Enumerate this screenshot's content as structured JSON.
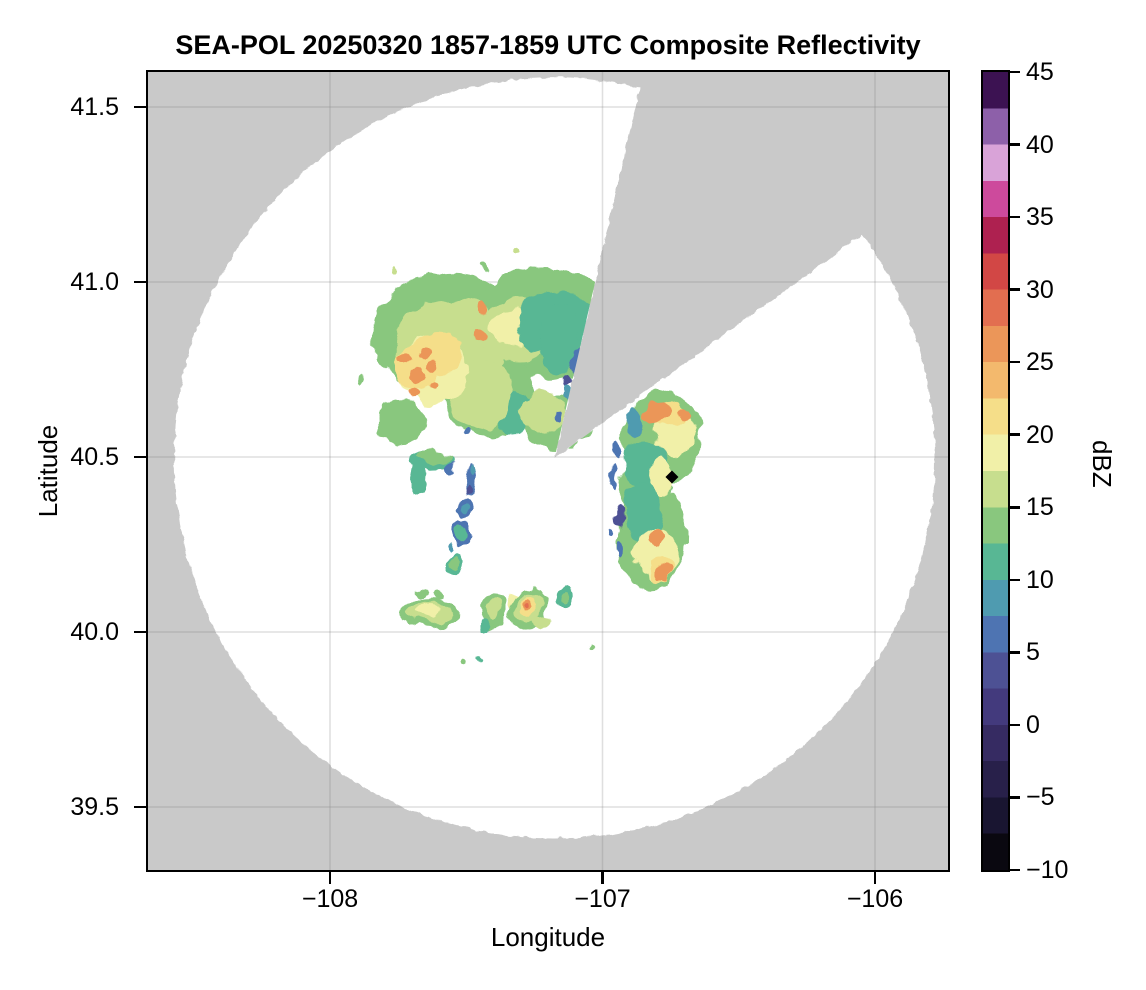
{
  "figure": {
    "title": "SEA-POL 20250320 1857-1859 UTC Composite Reflectivity",
    "x_axis": {
      "label": "Longitude",
      "tick_labels": [
        "−108",
        "−107",
        "−106"
      ],
      "tick_values": [
        -108,
        -107,
        -106
      ]
    },
    "y_axis": {
      "label": "Latitude",
      "tick_labels": [
        "41.5",
        "41.0",
        "40.5",
        "40.0",
        "39.5"
      ],
      "tick_values": [
        41.5,
        41.0,
        40.5,
        40.0,
        39.5
      ]
    },
    "colorbar": {
      "label": "dBZ",
      "tick_labels": [
        "45",
        "40",
        "35",
        "30",
        "25",
        "20",
        "15",
        "10",
        "5",
        "0",
        "−5",
        "−10"
      ],
      "tick_values": [
        45,
        40,
        35,
        30,
        25,
        20,
        15,
        10,
        5,
        0,
        -5,
        -10
      ],
      "vmin": -10,
      "vmax": 45,
      "segment_step": 2.5,
      "colors_bottom_to_top": [
        "#0a0810",
        "#191531",
        "#28204a",
        "#362b62",
        "#433a7d",
        "#4d5194",
        "#4e74b2",
        "#4f9bb0",
        "#58b794",
        "#89c77e",
        "#c7de8e",
        "#f1f0a8",
        "#f5de89",
        "#f3b96d",
        "#eb9659",
        "#e26e50",
        "#d24745",
        "#ae2150",
        "#cd4a9c",
        "#d9a3d8",
        "#8d60a9",
        "#3c1252"
      ]
    },
    "colors": {
      "background": "#ffffff",
      "no_data_gray": "#c9c9c9",
      "scan_area_white": "#ffffff",
      "gridline": "#808080",
      "spine": "#000000",
      "marker": "#000000"
    }
  },
  "chart_data": {
    "type": "heatmap",
    "title": "SEA-POL 20250320 1857-1859 UTC Composite Reflectivity",
    "xlabel": "Longitude",
    "ylabel": "Latitude",
    "units": "dBZ",
    "grid": true,
    "x_range": [
      -108.668,
      -105.732
    ],
    "y_range": [
      39.32,
      41.6
    ],
    "x_ticks": [
      -108,
      -107,
      -106
    ],
    "y_ticks": [
      39.5,
      40.0,
      40.5,
      41.0,
      41.5
    ],
    "colorbar_range": [
      -10,
      45
    ],
    "radar": {
      "lon": -107.176,
      "lat": 40.497,
      "range_lat_deg": 1.087,
      "blocked_sector_azimuth_deg": [
        13,
        54
      ]
    },
    "site_marker": {
      "lon": -106.745,
      "lat": 40.443,
      "shape": "diamond",
      "color": "#000000"
    },
    "region_format": [
      "lon",
      "lat",
      "rx_deg",
      "ry_deg",
      "dbz"
    ],
    "regions": [
      [
        -107.55,
        40.85,
        0.3,
        0.175,
        12.5
      ],
      [
        -107.22,
        40.88,
        0.27,
        0.16,
        12.5
      ],
      [
        -107.42,
        40.68,
        0.17,
        0.12,
        12.5
      ],
      [
        -107.74,
        40.6,
        0.09,
        0.065,
        12.5
      ],
      [
        -107.16,
        40.6,
        0.13,
        0.08,
        12.5
      ],
      [
        -107.33,
        40.63,
        0.07,
        0.06,
        10
      ],
      [
        -107.55,
        40.83,
        0.21,
        0.12,
        15
      ],
      [
        -107.3,
        40.86,
        0.15,
        0.09,
        15
      ],
      [
        -107.45,
        40.68,
        0.12,
        0.1,
        15
      ],
      [
        -107.22,
        40.63,
        0.08,
        0.06,
        15
      ],
      [
        -107.62,
        40.75,
        0.13,
        0.1,
        17.5
      ],
      [
        -107.68,
        40.76,
        0.08,
        0.07,
        20
      ],
      [
        -107.6,
        40.8,
        0.09,
        0.06,
        20
      ],
      [
        -107.33,
        40.87,
        0.08,
        0.05,
        17.5
      ],
      [
        -107.72,
        40.79,
        0.026,
        0.02,
        25
      ],
      [
        -107.68,
        40.73,
        0.028,
        0.022,
        25
      ],
      [
        -107.66,
        40.8,
        0.02,
        0.016,
        25
      ],
      [
        -107.63,
        40.76,
        0.024,
        0.018,
        25
      ],
      [
        -107.7,
        40.68,
        0.02,
        0.016,
        25
      ],
      [
        -107.62,
        40.7,
        0.018,
        0.015,
        25
      ],
      [
        -107.45,
        40.85,
        0.022,
        0.016,
        25
      ],
      [
        -107.44,
        40.92,
        0.022,
        0.015,
        25
      ],
      [
        -107.17,
        40.88,
        0.14,
        0.095,
        10
      ],
      [
        -107.16,
        40.84,
        0.07,
        0.1,
        10
      ],
      [
        -107.1,
        40.77,
        0.02,
        0.03,
        5
      ],
      [
        -107.13,
        40.72,
        0.012,
        0.02,
        2.5
      ],
      [
        -107.12,
        40.68,
        0.018,
        0.025,
        7.5
      ],
      [
        -107.17,
        40.62,
        0.015,
        0.02,
        5
      ],
      [
        -107.76,
        41.03,
        0.012,
        0.012,
        15
      ],
      [
        -107.43,
        41.05,
        0.012,
        0.01,
        12.5
      ],
      [
        -107.33,
        41.09,
        0.01,
        0.01,
        15
      ],
      [
        -107.9,
        40.72,
        0.01,
        0.01,
        12.5
      ],
      [
        -107.633,
        40.489,
        0.085,
        0.028,
        10
      ],
      [
        -107.62,
        40.5,
        0.06,
        0.018,
        12.5
      ],
      [
        -107.68,
        40.44,
        0.03,
        0.05,
        10
      ],
      [
        -107.555,
        40.47,
        0.018,
        0.02,
        5
      ],
      [
        -107.49,
        40.425,
        0.02,
        0.045,
        5
      ],
      [
        -107.493,
        40.4,
        0.012,
        0.015,
        2.5
      ],
      [
        -107.487,
        40.455,
        0.012,
        0.012,
        7.5
      ],
      [
        -107.497,
        40.568,
        0.013,
        0.011,
        5
      ],
      [
        -107.505,
        40.349,
        0.032,
        0.022,
        5
      ],
      [
        -107.505,
        40.349,
        0.015,
        0.01,
        7.5
      ],
      [
        -107.517,
        40.283,
        0.042,
        0.037,
        5
      ],
      [
        -107.517,
        40.283,
        0.027,
        0.024,
        10
      ],
      [
        -107.541,
        40.194,
        0.028,
        0.033,
        10
      ],
      [
        -107.541,
        40.197,
        0.016,
        0.02,
        12.5
      ],
      [
        -107.565,
        40.245,
        0.008,
        0.008,
        7.5
      ],
      [
        -106.78,
        40.55,
        0.145,
        0.135,
        12.5
      ],
      [
        -106.84,
        40.42,
        0.1,
        0.1,
        12.5
      ],
      [
        -106.82,
        40.27,
        0.125,
        0.155,
        12.5
      ],
      [
        -106.88,
        40.6,
        0.035,
        0.045,
        7.5
      ],
      [
        -106.84,
        40.48,
        0.09,
        0.07,
        10
      ],
      [
        -106.85,
        40.34,
        0.07,
        0.085,
        10
      ],
      [
        -106.73,
        40.57,
        0.08,
        0.06,
        17.5
      ],
      [
        -106.75,
        40.62,
        0.05,
        0.035,
        20
      ],
      [
        -106.8,
        40.63,
        0.045,
        0.028,
        25
      ],
      [
        -106.71,
        40.625,
        0.02,
        0.015,
        25
      ],
      [
        -106.78,
        40.44,
        0.045,
        0.055,
        17.5
      ],
      [
        -106.8,
        40.22,
        0.08,
        0.075,
        17.5
      ],
      [
        -106.79,
        40.18,
        0.05,
        0.04,
        20
      ],
      [
        -106.8,
        40.27,
        0.03,
        0.025,
        25
      ],
      [
        -106.78,
        40.17,
        0.035,
        0.025,
        25
      ],
      [
        -106.95,
        40.52,
        0.015,
        0.03,
        5
      ],
      [
        -106.96,
        40.44,
        0.012,
        0.035,
        5
      ],
      [
        -106.94,
        40.33,
        0.015,
        0.03,
        2.5
      ],
      [
        -106.93,
        40.24,
        0.012,
        0.025,
        5
      ],
      [
        -106.98,
        40.28,
        0.01,
        0.012,
        5
      ],
      [
        -107.635,
        40.055,
        0.1,
        0.045,
        12.5
      ],
      [
        -107.635,
        40.055,
        0.075,
        0.032,
        15
      ],
      [
        -107.64,
        40.06,
        0.045,
        0.02,
        17.5
      ],
      [
        -107.67,
        40.115,
        0.02,
        0.015,
        12.5
      ],
      [
        -107.615,
        40.11,
        0.015,
        0.012,
        12.5
      ],
      [
        -107.4,
        40.06,
        0.052,
        0.052,
        12.5
      ],
      [
        -107.4,
        40.065,
        0.028,
        0.03,
        15
      ],
      [
        -107.43,
        40.015,
        0.02,
        0.018,
        10
      ],
      [
        -107.33,
        40.1,
        0.022,
        0.018,
        17.5
      ],
      [
        -107.27,
        40.065,
        0.07,
        0.062,
        12.5
      ],
      [
        -107.27,
        40.07,
        0.05,
        0.045,
        15
      ],
      [
        -107.27,
        40.075,
        0.032,
        0.032,
        20
      ],
      [
        -107.275,
        40.08,
        0.018,
        0.018,
        25
      ],
      [
        -107.277,
        40.077,
        0.008,
        0.009,
        27.5
      ],
      [
        -107.22,
        40.03,
        0.025,
        0.02,
        15
      ],
      [
        -107.14,
        40.1,
        0.04,
        0.032,
        10
      ],
      [
        -107.14,
        40.1,
        0.02,
        0.016,
        12.5
      ],
      [
        -107.51,
        39.925,
        0.01,
        0.01,
        12.5
      ],
      [
        -107.46,
        39.93,
        0.008,
        0.008,
        10
      ],
      [
        -107.04,
        39.955,
        0.008,
        0.008,
        12.5
      ]
    ]
  }
}
